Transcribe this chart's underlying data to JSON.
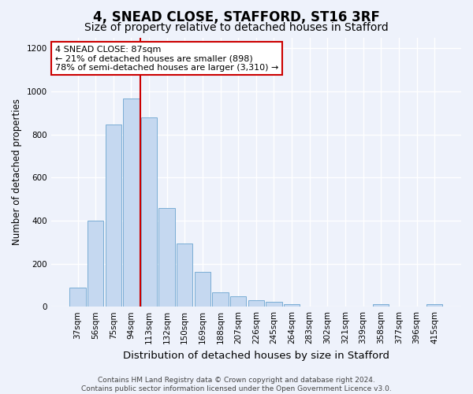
{
  "title": "4, SNEAD CLOSE, STAFFORD, ST16 3RF",
  "subtitle": "Size of property relative to detached houses in Stafford",
  "xlabel": "Distribution of detached houses by size in Stafford",
  "ylabel": "Number of detached properties",
  "categories": [
    "37sqm",
    "56sqm",
    "75sqm",
    "94sqm",
    "113sqm",
    "132sqm",
    "150sqm",
    "169sqm",
    "188sqm",
    "207sqm",
    "226sqm",
    "245sqm",
    "264sqm",
    "283sqm",
    "302sqm",
    "321sqm",
    "339sqm",
    "358sqm",
    "377sqm",
    "396sqm",
    "415sqm"
  ],
  "values": [
    90,
    398,
    845,
    968,
    878,
    457,
    293,
    163,
    68,
    50,
    30,
    22,
    10,
    0,
    0,
    0,
    0,
    10,
    0,
    0,
    12
  ],
  "bar_color": "#c5d8f0",
  "bar_edge_color": "#7aadd4",
  "vline_pos": 3.5,
  "vline_color": "#cc0000",
  "annotation_text": "4 SNEAD CLOSE: 87sqm\n← 21% of detached houses are smaller (898)\n78% of semi-detached houses are larger (3,310) →",
  "annotation_box_facecolor": "#ffffff",
  "annotation_box_edgecolor": "#cc0000",
  "ylim": [
    0,
    1250
  ],
  "yticks": [
    0,
    200,
    400,
    600,
    800,
    1000,
    1200
  ],
  "footer_line1": "Contains HM Land Registry data © Crown copyright and database right 2024.",
  "footer_line2": "Contains public sector information licensed under the Open Government Licence v3.0.",
  "background_color": "#eef2fb",
  "title_fontsize": 12,
  "subtitle_fontsize": 10,
  "xlabel_fontsize": 9.5,
  "ylabel_fontsize": 8.5,
  "tick_fontsize": 7.5,
  "footer_fontsize": 6.5,
  "annotation_fontsize": 8
}
